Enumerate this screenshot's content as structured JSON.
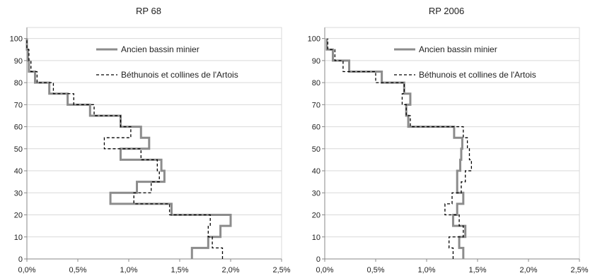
{
  "chart_data": [
    {
      "type": "line",
      "chart_subtype": "step-profile",
      "title": "RP 68",
      "xlim": [
        0,
        2.5
      ],
      "ylim": [
        0,
        105
      ],
      "x_ticks": [
        "0,0%",
        "0,5%",
        "1,0%",
        "1,5%",
        "2,0%",
        "2,5%"
      ],
      "y_ticks": [
        "0",
        "10",
        "20",
        "30",
        "40",
        "50",
        "60",
        "70",
        "80",
        "90",
        "100"
      ],
      "grid": "horizontal",
      "legend_position": "upper-center",
      "series": [
        {
          "name": "Ancien bassin minier",
          "color": "#8c8c8c",
          "style": "solid",
          "x": [
            1.62,
            1.78,
            1.9,
            2.0,
            1.42,
            0.82,
            1.08,
            1.35,
            1.32,
            0.92,
            1.2,
            1.12,
            0.92,
            0.62,
            0.4,
            0.22,
            0.08,
            0.02,
            0.01,
            0.0
          ],
          "y": [
            0,
            5,
            10,
            15,
            20,
            25,
            30,
            35,
            40,
            45,
            50,
            55,
            60,
            65,
            70,
            75,
            80,
            85,
            90,
            95
          ]
        },
        {
          "name": "Béthunois et collines de l'Artois",
          "color": "#000000",
          "style": "dashed",
          "x": [
            1.92,
            1.82,
            1.78,
            1.8,
            1.4,
            1.05,
            1.22,
            1.3,
            1.28,
            1.12,
            0.76,
            1.02,
            0.92,
            0.66,
            0.46,
            0.26,
            0.1,
            0.04,
            0.02,
            0.0
          ],
          "y": [
            0,
            5,
            10,
            15,
            20,
            25,
            30,
            35,
            40,
            45,
            50,
            55,
            60,
            65,
            70,
            75,
            80,
            85,
            90,
            95
          ]
        }
      ]
    },
    {
      "type": "line",
      "chart_subtype": "step-profile",
      "title": "RP 2006",
      "xlim": [
        0,
        2.5
      ],
      "ylim": [
        0,
        105
      ],
      "x_ticks": [
        "0,0%",
        "0,5%",
        "1,0%",
        "1,5%",
        "2,0%",
        "2,5%"
      ],
      "y_ticks": [
        "0",
        "10",
        "20",
        "30",
        "40",
        "50",
        "60",
        "70",
        "80",
        "90",
        "100"
      ],
      "grid": "horizontal",
      "legend_position": "upper-center",
      "series": [
        {
          "name": "Ancien bassin minier",
          "color": "#8c8c8c",
          "style": "solid",
          "x": [
            1.36,
            1.32,
            1.38,
            1.26,
            1.3,
            1.36,
            1.3,
            1.3,
            1.33,
            1.34,
            1.35,
            1.27,
            0.82,
            0.8,
            0.84,
            0.78,
            0.56,
            0.24,
            0.08,
            0.02
          ],
          "y": [
            0,
            5,
            10,
            15,
            20,
            25,
            30,
            35,
            40,
            45,
            50,
            55,
            60,
            65,
            70,
            75,
            80,
            85,
            90,
            95
          ]
        },
        {
          "name": "Béthunois et collines de l'Artois",
          "color": "#000000",
          "style": "dashed",
          "x": [
            1.26,
            1.22,
            1.36,
            1.32,
            1.18,
            1.25,
            1.34,
            1.38,
            1.44,
            1.42,
            1.4,
            1.36,
            0.84,
            0.8,
            0.76,
            0.78,
            0.5,
            0.18,
            0.1,
            0.03
          ],
          "y": [
            0,
            5,
            10,
            15,
            20,
            25,
            30,
            35,
            40,
            45,
            50,
            55,
            60,
            65,
            70,
            75,
            80,
            85,
            90,
            95
          ]
        }
      ]
    }
  ]
}
